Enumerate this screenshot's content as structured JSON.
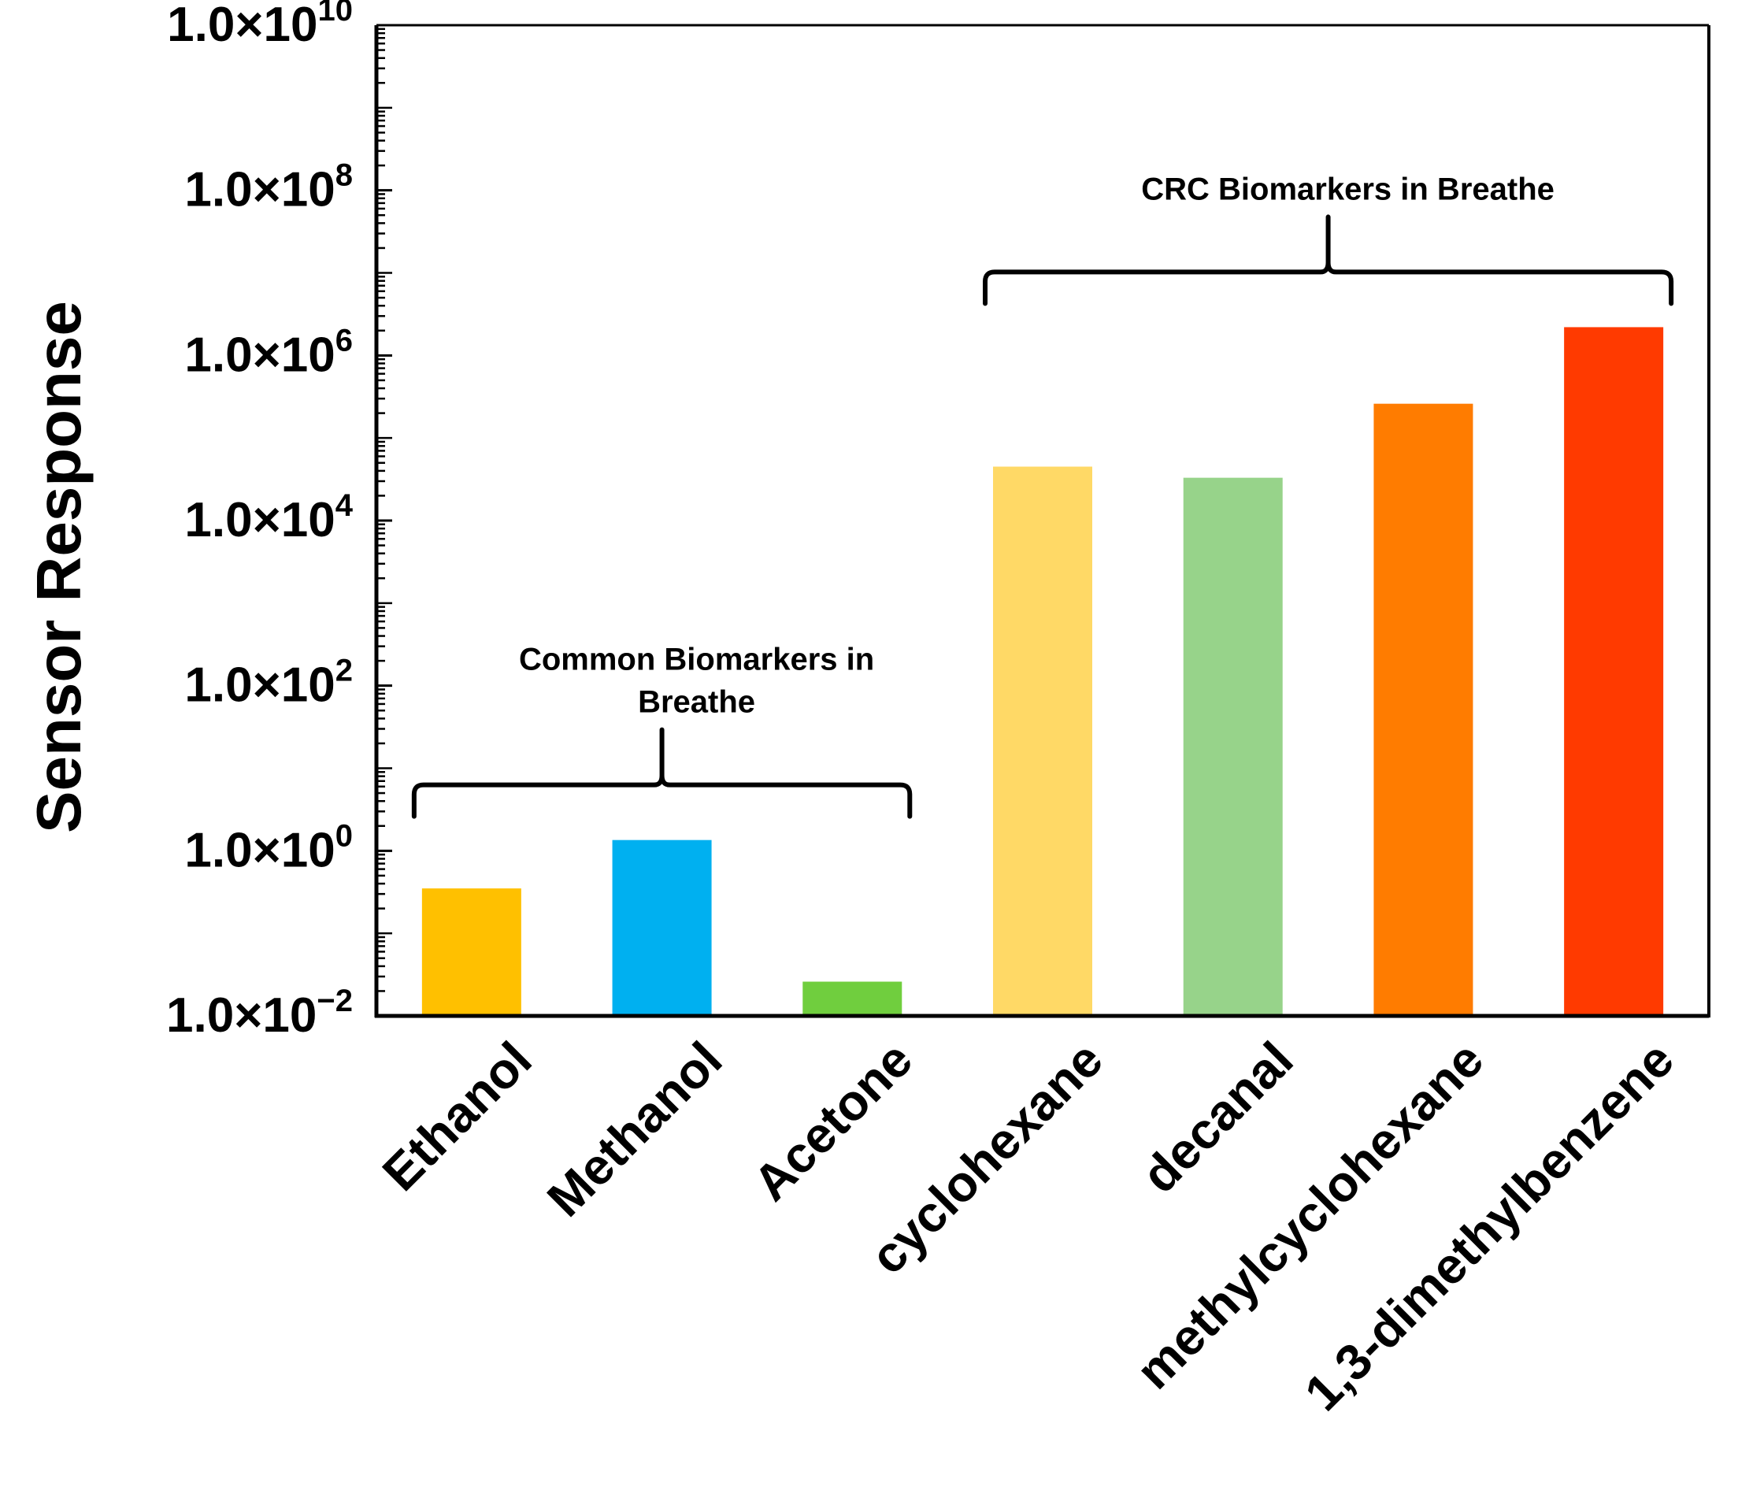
{
  "chart_data": {
    "type": "bar",
    "yscale": "log",
    "ylabel": "Sensor Response",
    "ylim": [
      0.01,
      10000000000
    ],
    "yticks": [
      {
        "value": 10000000000,
        "mantissa": "1.0×10",
        "exp": "10"
      },
      {
        "value": 100000000,
        "mantissa": "1.0×10",
        "exp": "8"
      },
      {
        "value": 1000000,
        "mantissa": "1.0×10",
        "exp": "6"
      },
      {
        "value": 10000,
        "mantissa": "1.0×10",
        "exp": "4"
      },
      {
        "value": 100,
        "mantissa": "1.0×10",
        "exp": "2"
      },
      {
        "value": 1,
        "mantissa": "1.0×10",
        "exp": "0"
      },
      {
        "value": 0.01,
        "mantissa": "1.0×10",
        "exp": "−2"
      }
    ],
    "categories": [
      "Ethanol",
      "Methanol",
      "Acetone",
      "cyclohexane",
      "decanal",
      "methylcyclohexane",
      "1,3-dimethylbenzene"
    ],
    "values": [
      0.35,
      1.35,
      0.026,
      45000,
      33000,
      260000,
      2200000
    ],
    "colors": [
      "#FFC000",
      "#00B0F0",
      "#70CE3E",
      "#FFD966",
      "#97D38A",
      "#FF7C00",
      "#FF3A00"
    ],
    "groups": [
      {
        "label": "Common Biomarkers in Breathe",
        "label_lines": [
          "Common Biomarkers in",
          "Breathe"
        ],
        "from": 0,
        "to": 2
      },
      {
        "label": "CRC Biomarkers in Breathe",
        "label_lines": [
          "CRC Biomarkers in Breathe"
        ],
        "from": 3,
        "to": 6
      }
    ]
  }
}
